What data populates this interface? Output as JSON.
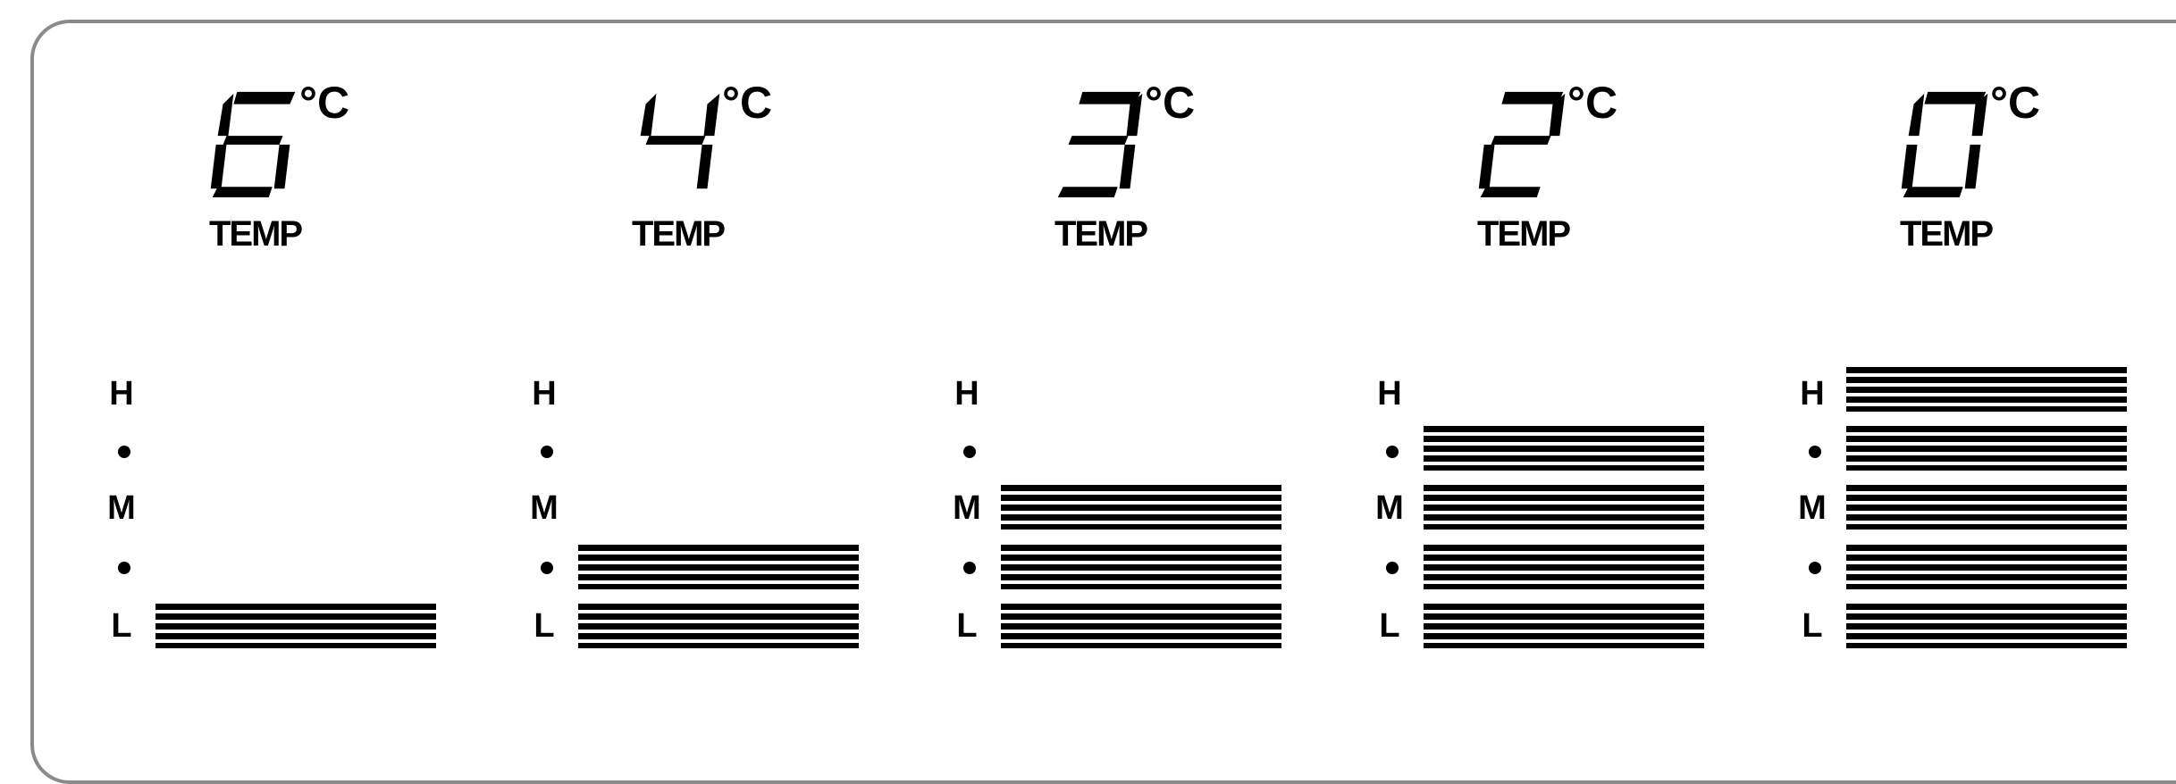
{
  "degree_unit": "°C",
  "temp_label": "TEMP",
  "level_labels": [
    "H",
    "M",
    "L"
  ],
  "settings": [
    {
      "temp": "6",
      "level": 1
    },
    {
      "temp": "4",
      "level": 2
    },
    {
      "temp": "3",
      "level": 3
    },
    {
      "temp": "2",
      "level": 4
    },
    {
      "temp": "0",
      "level": 5
    }
  ]
}
